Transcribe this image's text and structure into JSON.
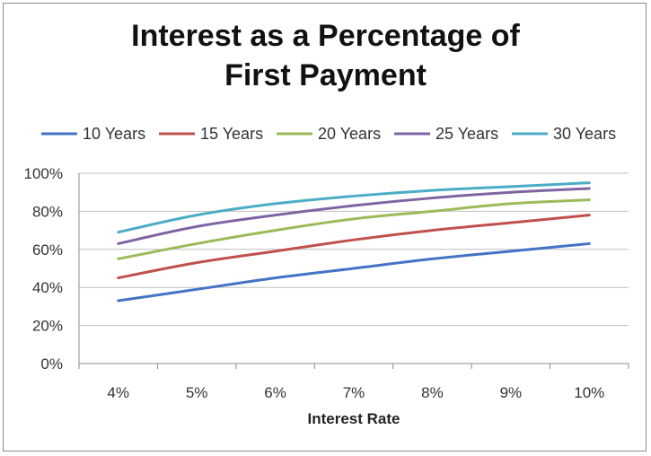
{
  "chart_data": {
    "type": "line",
    "title_lines": [
      "Interest as a Percentage of",
      "First Payment"
    ],
    "xlabel": "Interest Rate",
    "ylabel": "",
    "categories": [
      "4%",
      "5%",
      "6%",
      "7%",
      "8%",
      "9%",
      "10%"
    ],
    "yticks": [
      "0%",
      "20%",
      "40%",
      "60%",
      "80%",
      "100%"
    ],
    "ylim": [
      0,
      100
    ],
    "grid": "horizontal",
    "legend_position": "top",
    "series": [
      {
        "name": "10 Years",
        "color": "#4472c4",
        "values": [
          33,
          39,
          45,
          50,
          55,
          59,
          63
        ]
      },
      {
        "name": "15 Years",
        "color": "#c0504d",
        "values": [
          45,
          53,
          59,
          65,
          70,
          74,
          78
        ]
      },
      {
        "name": "20 Years",
        "color": "#9bbb59",
        "values": [
          55,
          63,
          70,
          76,
          80,
          84,
          86
        ]
      },
      {
        "name": "25 Years",
        "color": "#8064a2",
        "values": [
          63,
          72,
          78,
          83,
          87,
          90,
          92
        ]
      },
      {
        "name": "30 Years",
        "color": "#4bacc6",
        "values": [
          69,
          78,
          84,
          88,
          91,
          93,
          95
        ]
      }
    ]
  }
}
